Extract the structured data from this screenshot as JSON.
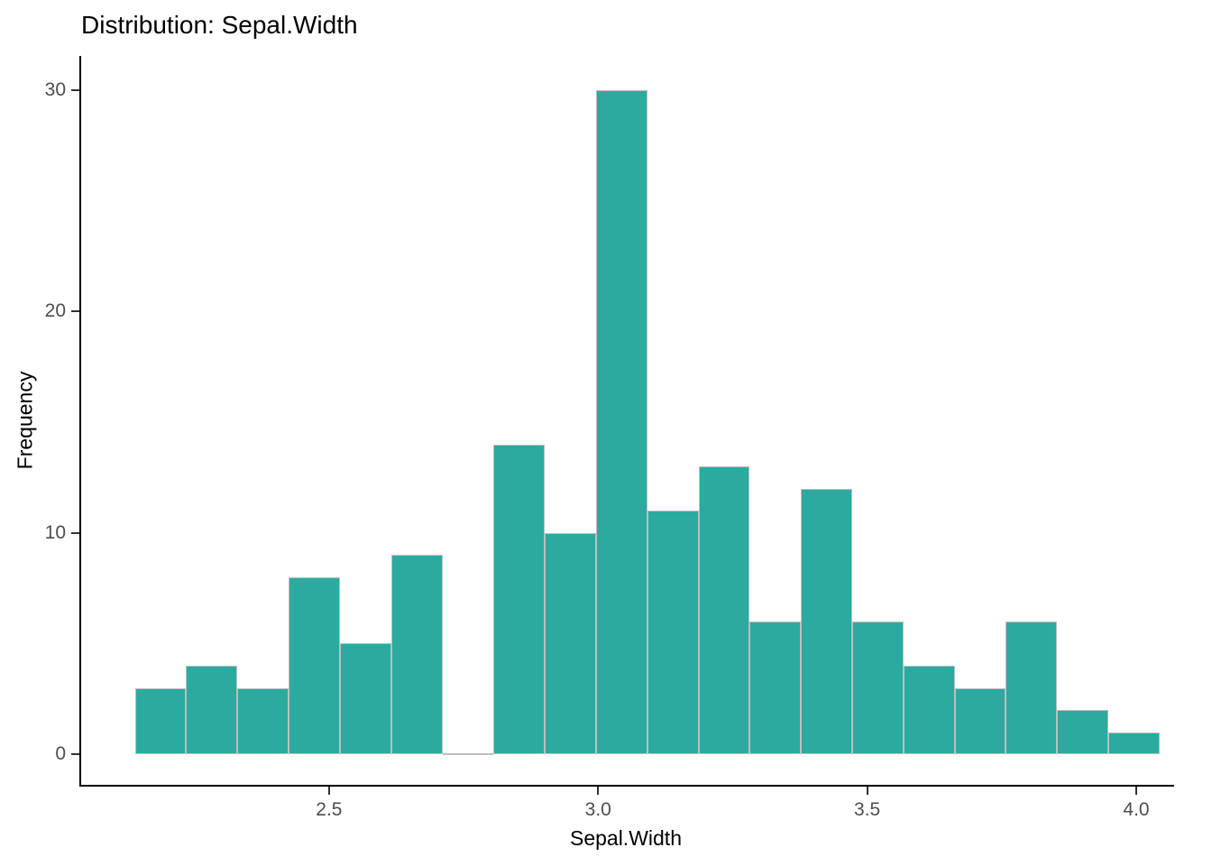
{
  "chart_data": {
    "type": "bar",
    "subtype": "histogram",
    "title": "Distribution: Sepal.Width",
    "xlabel": "Sepal.Width",
    "ylabel": "Frequency",
    "bin_start": 2.136,
    "bin_width": 0.0952,
    "counts": [
      3,
      4,
      3,
      8,
      5,
      9,
      0,
      14,
      10,
      30,
      11,
      13,
      6,
      12,
      6,
      4,
      3,
      6,
      2,
      1
    ],
    "total_observations": 150,
    "x_ticks": [
      {
        "value": 2.5,
        "label": "2.5"
      },
      {
        "value": 3.0,
        "label": "3.0"
      },
      {
        "value": 3.5,
        "label": "3.5"
      },
      {
        "value": 4.0,
        "label": "4.0"
      }
    ],
    "y_ticks": [
      {
        "value": 0,
        "label": "0"
      },
      {
        "value": 10,
        "label": "10"
      },
      {
        "value": 20,
        "label": "20"
      },
      {
        "value": 30,
        "label": "30"
      }
    ],
    "xlim": [
      2.036,
      4.067
    ],
    "ylim": [
      -1.38,
      31.54
    ],
    "grid": "off",
    "legend": "none",
    "colors": {
      "bar_fill": "#2bab9f",
      "bar_border": "#bebebe",
      "axis_line": "#000000",
      "tick_label": "#4d4d4d",
      "background": "#ffffff"
    }
  }
}
